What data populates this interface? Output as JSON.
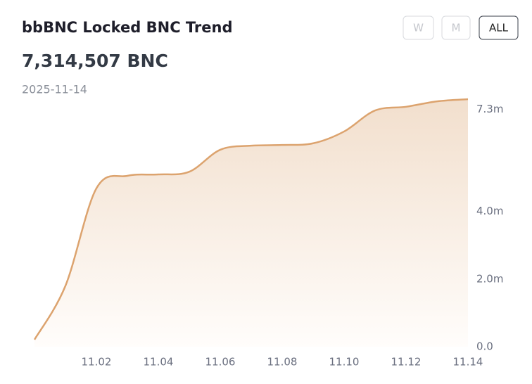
{
  "header": {
    "title": "bbBNC Locked BNC Trend",
    "total": "7,314,507 BNC",
    "date": "2025-11-14",
    "buttons": [
      "W",
      "M",
      "ALL"
    ],
    "active": "ALL"
  },
  "chart_data": {
    "type": "area",
    "color": "#dca36e",
    "categories": [
      null,
      null,
      "11.02",
      null,
      "11.04",
      null,
      "11.06",
      null,
      "11.08",
      null,
      "11.10",
      null,
      "11.12",
      null,
      "11.14"
    ],
    "values": [
      210000,
      1800000,
      4680000,
      5050000,
      5090000,
      5170000,
      5820000,
      5940000,
      5960000,
      6010000,
      6360000,
      6980000,
      7090000,
      7250000,
      7314507
    ],
    "ylim": [
      0,
      7314507
    ],
    "yticks": [
      {
        "value": 0,
        "label": "0.0"
      },
      {
        "value": 2000000,
        "label": "2.0m"
      },
      {
        "value": 4000000,
        "label": "4.0m"
      },
      {
        "value": 7300000,
        "label": "7.3m"
      }
    ]
  }
}
